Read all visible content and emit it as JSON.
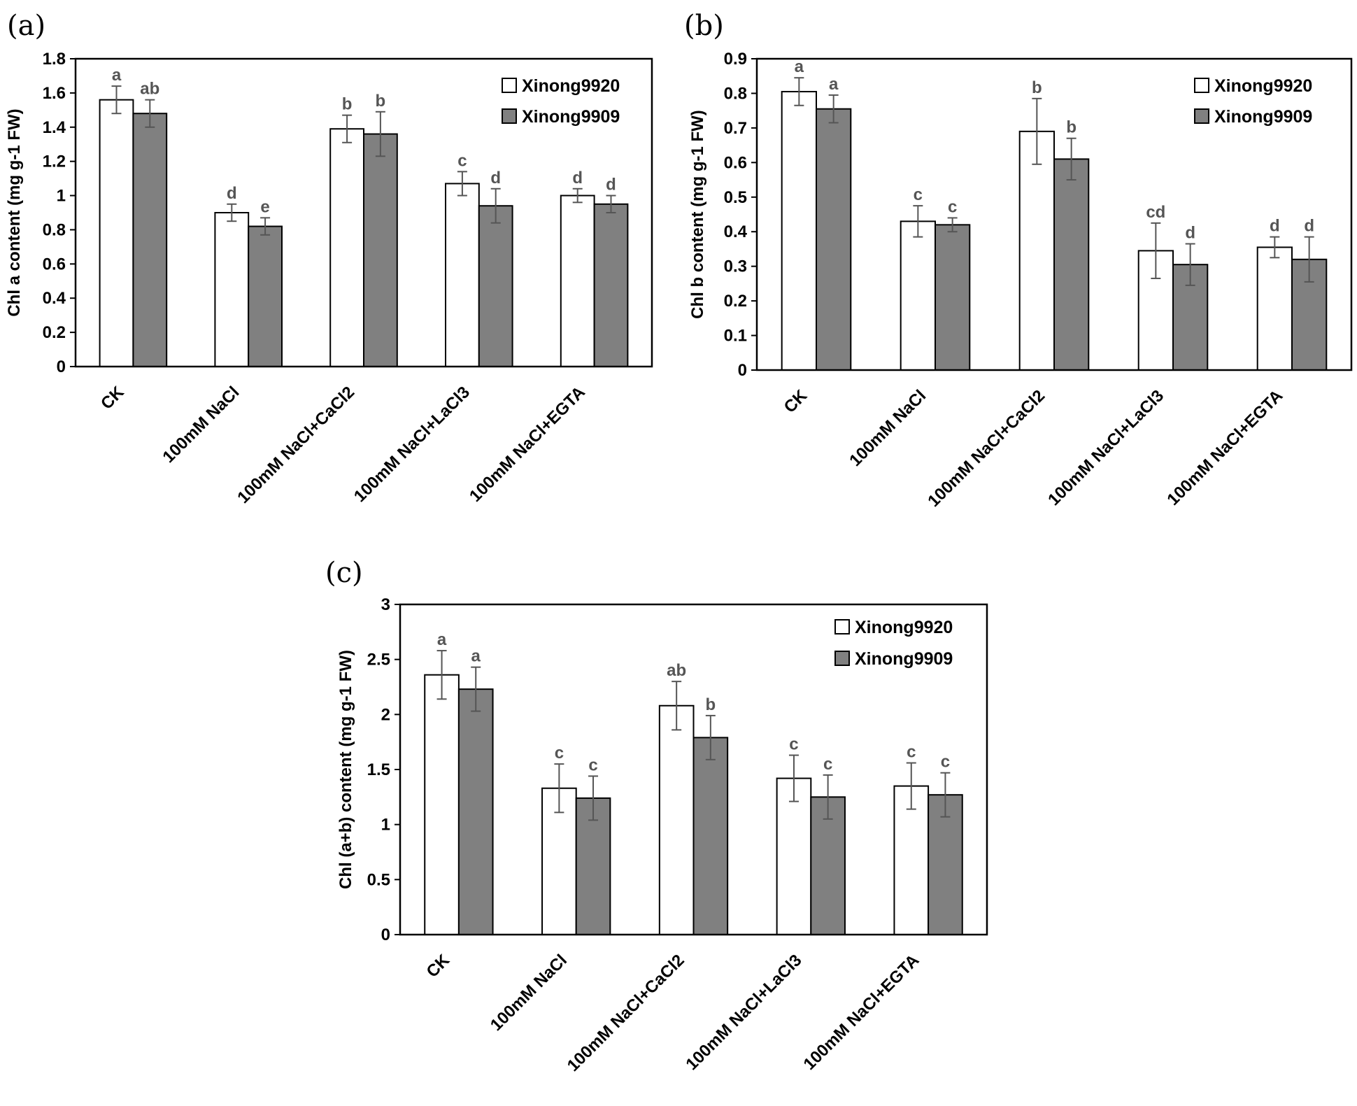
{
  "series_names": [
    "Xinong9920",
    "Xinong9909"
  ],
  "series_colors": [
    "#ffffff",
    "#808080"
  ],
  "chart_data": [
    {
      "type": "bar",
      "panel_label": "(a)",
      "ylabel": "Chl a content (mg g-1 FW)",
      "ylim": [
        0,
        1.8
      ],
      "yticks": [
        0,
        0.2,
        0.4,
        0.6,
        0.8,
        1,
        1.2,
        1.4,
        1.6,
        1.8
      ],
      "ytick_labels": [
        "0",
        "0.2",
        "0.4",
        "0.6",
        "0.8",
        "1",
        "1.2",
        "1.4",
        "1.6",
        "1.8"
      ],
      "categories": [
        "CK",
        "100mM NaCl",
        "100mM NaCl+CaCl2",
        "100mM NaCl+LaCl3",
        "100mM NaCl+EGTA"
      ],
      "legend": "top-right",
      "grid": false,
      "series": [
        {
          "name": "Xinong9920",
          "values": [
            1.56,
            0.9,
            1.39,
            1.07,
            1.0
          ],
          "errors": [
            0.08,
            0.05,
            0.08,
            0.07,
            0.04
          ],
          "letters": [
            "a",
            "d",
            "b",
            "c",
            "d"
          ]
        },
        {
          "name": "Xinong9909",
          "values": [
            1.48,
            0.82,
            1.36,
            0.94,
            0.95
          ],
          "errors": [
            0.08,
            0.05,
            0.13,
            0.1,
            0.05
          ],
          "letters": [
            "ab",
            "e",
            "b",
            "d",
            "d"
          ]
        }
      ]
    },
    {
      "type": "bar",
      "panel_label": "(b)",
      "ylabel": "Chl b content (mg g-1 FW)",
      "ylim": [
        0,
        0.9
      ],
      "yticks": [
        0,
        0.1,
        0.2,
        0.3,
        0.4,
        0.5,
        0.6,
        0.7,
        0.8,
        0.9
      ],
      "ytick_labels": [
        "0",
        "0.1",
        "0.2",
        "0.3",
        "0.4",
        "0.5",
        "0.6",
        "0.7",
        "0.8",
        "0.9"
      ],
      "categories": [
        "CK",
        "100mM NaCl",
        "100mM NaCl+CaCl2",
        "100mM NaCl+LaCl3",
        "100mM NaCl+EGTA"
      ],
      "legend": "top-right",
      "grid": false,
      "series": [
        {
          "name": "Xinong9920",
          "values": [
            0.805,
            0.43,
            0.69,
            0.345,
            0.355
          ],
          "errors": [
            0.04,
            0.045,
            0.095,
            0.08,
            0.03
          ],
          "letters": [
            "a",
            "c",
            "b",
            "cd",
            "d"
          ]
        },
        {
          "name": "Xinong9909",
          "values": [
            0.755,
            0.42,
            0.61,
            0.305,
            0.32
          ],
          "errors": [
            0.04,
            0.02,
            0.06,
            0.06,
            0.065
          ],
          "letters": [
            "a",
            "c",
            "b",
            "d",
            "d"
          ]
        }
      ]
    },
    {
      "type": "bar",
      "panel_label": "(c)",
      "ylabel": "Chl (a+b) content (mg g-1 FW)",
      "ylim": [
        0,
        3
      ],
      "yticks": [
        0,
        0.5,
        1,
        1.5,
        2,
        2.5,
        3
      ],
      "ytick_labels": [
        "0",
        "0.5",
        "1",
        "1.5",
        "2",
        "2.5",
        "3"
      ],
      "categories": [
        "CK",
        "100mM NaCl",
        "100mM NaCl+CaCl2",
        "100mM NaCl+LaCl3",
        "100mM NaCl+EGTA"
      ],
      "legend": "top-right",
      "grid": false,
      "series": [
        {
          "name": "Xinong9920",
          "values": [
            2.36,
            1.33,
            2.08,
            1.42,
            1.35
          ],
          "errors": [
            0.22,
            0.22,
            0.22,
            0.21,
            0.21
          ],
          "letters": [
            "a",
            "c",
            "ab",
            "c",
            "c"
          ]
        },
        {
          "name": "Xinong9909",
          "values": [
            2.23,
            1.24,
            1.79,
            1.25,
            1.27
          ],
          "errors": [
            0.2,
            0.2,
            0.2,
            0.2,
            0.2
          ],
          "letters": [
            "a",
            "c",
            "b",
            "c",
            "c"
          ]
        }
      ]
    }
  ]
}
